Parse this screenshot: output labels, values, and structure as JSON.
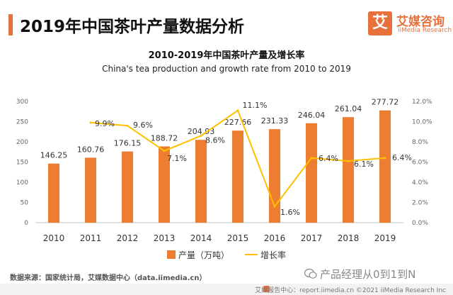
{
  "header": {
    "title": "2019年中国茶叶产量数据分析"
  },
  "brand": {
    "logo_char": "艾",
    "name": "艾媒咨询",
    "sub": "iiMedia Research"
  },
  "source": {
    "text": "数据来源：国家统计局，艾媒数据中心（data.iimedia.cn）"
  },
  "watermark": {
    "text": "产品经理从0到1到N"
  },
  "footer": {
    "text": "艾媒报告中心：report.iimedia.cn ©2021  iiMedia Research  Inc"
  },
  "colors": {
    "bar": "#ed7d31",
    "line": "#ffc000",
    "accent": "#e8703a"
  },
  "chart_data": {
    "type": "bar",
    "title": "2010-2019年中国茶叶产量及增长率",
    "subtitle": "China's tea production and growth rate from 2010 to 2019",
    "categories": [
      "2010",
      "2011",
      "2012",
      "2013",
      "2014",
      "2015",
      "2016",
      "2017",
      "2018",
      "2019"
    ],
    "series": [
      {
        "name": "产量（万吨）",
        "type": "bar",
        "values": [
          146.25,
          160.76,
          176.15,
          188.72,
          204.93,
          227.66,
          231.33,
          246.04,
          261.04,
          277.72
        ],
        "labels": [
          "146.25",
          "160.76",
          "176.15",
          "188.72",
          "204.93",
          "227.66",
          "231.33",
          "246.04",
          "261.04",
          "277.72"
        ]
      },
      {
        "name": "增长率",
        "type": "line",
        "axis": "right",
        "values": [
          null,
          9.9,
          9.6,
          7.1,
          8.6,
          11.1,
          1.6,
          6.4,
          6.1,
          6.4
        ],
        "labels": [
          "",
          "9.9%",
          "9.6%",
          "7.1%",
          "8.6%",
          "11.1%",
          "1.6%",
          "6.4%",
          "6.1%",
          "6.4%"
        ]
      }
    ],
    "ylim": [
      0,
      300
    ],
    "y_ticks": [
      "0",
      "50",
      "100",
      "150",
      "200",
      "250",
      "300"
    ],
    "y2lim": [
      0,
      12
    ],
    "y2_ticks": [
      "0.0%",
      "2.0%",
      "4.0%",
      "6.0%",
      "8.0%",
      "10.0%",
      "12.0%"
    ],
    "legend": "bottom",
    "grid": false
  }
}
